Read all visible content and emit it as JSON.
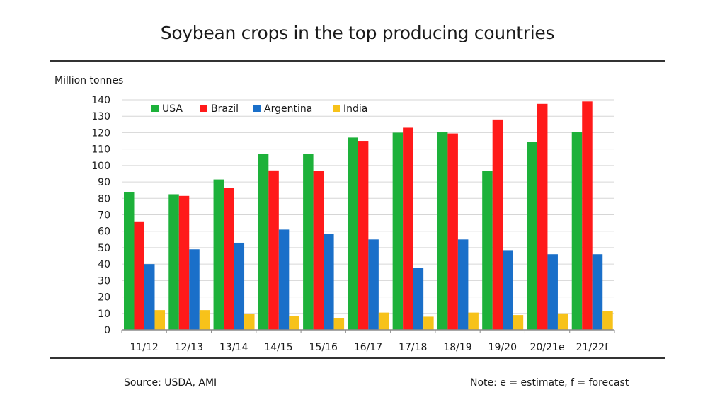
{
  "title": "Soybean crops in the top producing countries",
  "source": "Source: USDA, AMI",
  "note": "Note: e = estimate, f = forecast",
  "chart_data": {
    "type": "bar",
    "title": "Soybean crops in the top producing countries",
    "ylabel": "Million tonnes",
    "xlabel": "",
    "ylim": [
      0,
      140
    ],
    "yticks": [
      0,
      10,
      20,
      30,
      40,
      50,
      60,
      70,
      80,
      90,
      100,
      110,
      120,
      130,
      140
    ],
    "grid": true,
    "legend_position": "top-left",
    "categories": [
      "11/12",
      "12/13",
      "13/14",
      "14/15",
      "15/16",
      "16/17",
      "17/18",
      "18/19",
      "19/20",
      "20/21e",
      "21/22f"
    ],
    "series": [
      {
        "name": "USA",
        "color": "#1db13a",
        "values": [
          84,
          82.5,
          91.5,
          107,
          107,
          117,
          120,
          120.5,
          96.5,
          114.5,
          120.5
        ]
      },
      {
        "name": "Brazil",
        "color": "#ff1a1a",
        "values": [
          66,
          81.5,
          86.5,
          97,
          96.5,
          115,
          123,
          119.5,
          128,
          137.5,
          139
        ]
      },
      {
        "name": "Argentina",
        "color": "#1a6fc9",
        "values": [
          40,
          49,
          53,
          61,
          58.5,
          55,
          37.5,
          55,
          48.5,
          46,
          46
        ]
      },
      {
        "name": "India",
        "color": "#f7c21a",
        "values": [
          12,
          12,
          9.5,
          8.5,
          7,
          10.5,
          8,
          10.5,
          9,
          10,
          11.5
        ]
      }
    ]
  }
}
